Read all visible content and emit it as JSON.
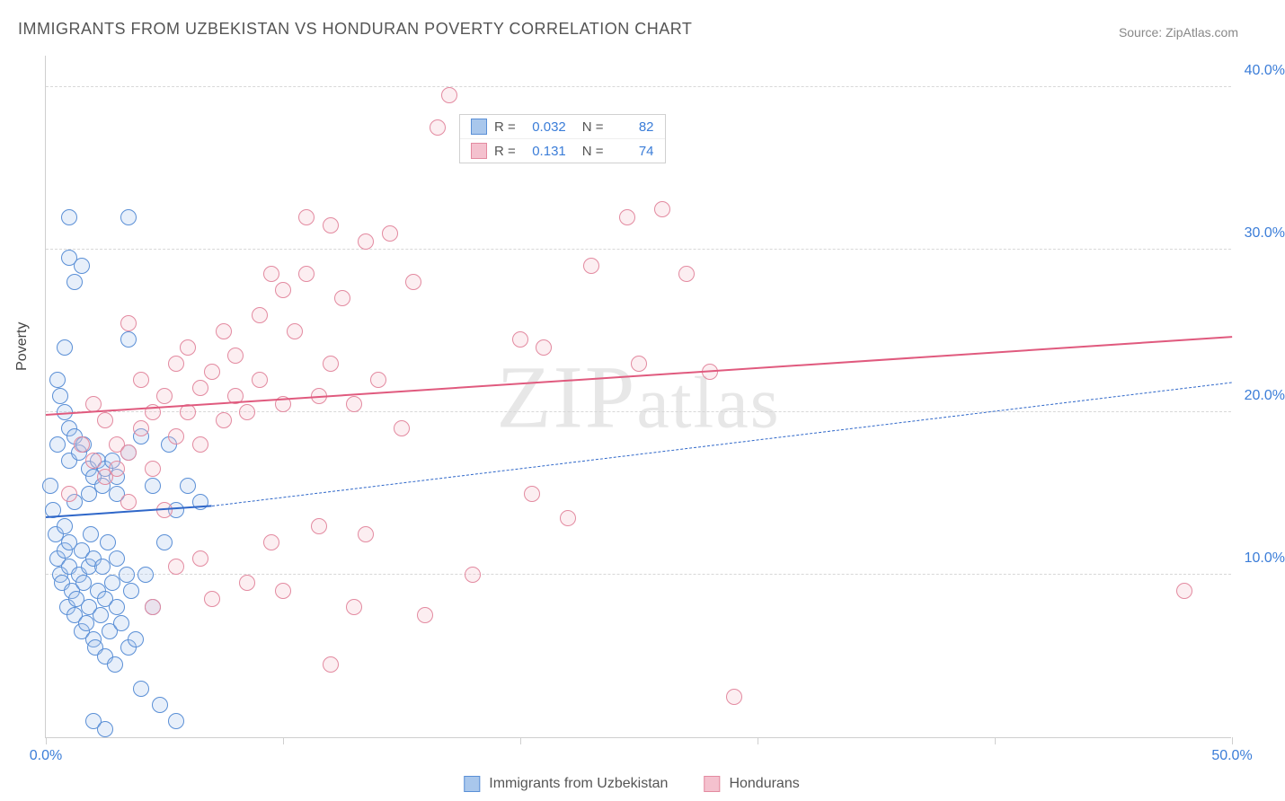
{
  "title": "IMMIGRANTS FROM UZBEKISTAN VS HONDURAN POVERTY CORRELATION CHART",
  "source": "Source: ZipAtlas.com",
  "watermark": "ZIPatlas",
  "y_axis_label": "Poverty",
  "chart": {
    "type": "scatter",
    "background_color": "#ffffff",
    "grid_color": "#d8d8d8",
    "axis_color": "#cfcfcf",
    "xlim": [
      0,
      50
    ],
    "ylim": [
      0,
      42
    ],
    "x_tick_major": [
      0,
      10,
      20,
      30,
      40,
      50
    ],
    "x_tick_labels": [
      {
        "pos": 0,
        "text": "0.0%",
        "color": "#3b7dd8"
      },
      {
        "pos": 50,
        "text": "50.0%",
        "color": "#3b7dd8"
      }
    ],
    "y_grid": [
      10,
      20,
      30,
      40
    ],
    "y_tick_labels": [
      {
        "pos": 10,
        "text": "10.0%",
        "color": "#3b7dd8"
      },
      {
        "pos": 20,
        "text": "20.0%",
        "color": "#3b7dd8"
      },
      {
        "pos": 30,
        "text": "30.0%",
        "color": "#3b7dd8"
      },
      {
        "pos": 40,
        "text": "40.0%",
        "color": "#3b7dd8"
      }
    ],
    "point_radius": 9,
    "point_border_width": 1.2,
    "point_fill_opacity": 0.28,
    "series": [
      {
        "name": "Immigrants from Uzbekistan",
        "color_border": "#5a8fd6",
        "color_fill": "#a9c7ec",
        "R": "0.032",
        "N": "82",
        "trend": {
          "x1": 0,
          "y1": 13.5,
          "x2_solid": 7,
          "y2_solid": 14.2,
          "x2": 50,
          "y2": 21.8,
          "color": "#2f67c9"
        },
        "points": [
          [
            0.2,
            15.5
          ],
          [
            0.3,
            14.0
          ],
          [
            0.4,
            12.5
          ],
          [
            0.5,
            11.0
          ],
          [
            0.5,
            18.0
          ],
          [
            0.6,
            10.0
          ],
          [
            0.7,
            9.5
          ],
          [
            0.8,
            11.5
          ],
          [
            0.8,
            13.0
          ],
          [
            0.9,
            8.0
          ],
          [
            1.0,
            10.5
          ],
          [
            1.0,
            12.0
          ],
          [
            1.1,
            9.0
          ],
          [
            1.2,
            7.5
          ],
          [
            1.2,
            14.5
          ],
          [
            1.3,
            8.5
          ],
          [
            1.4,
            10.0
          ],
          [
            1.5,
            6.5
          ],
          [
            1.5,
            11.5
          ],
          [
            1.6,
            9.5
          ],
          [
            1.7,
            7.0
          ],
          [
            1.8,
            8.0
          ],
          [
            1.8,
            10.5
          ],
          [
            1.9,
            12.5
          ],
          [
            2.0,
            6.0
          ],
          [
            2.0,
            11.0
          ],
          [
            2.1,
            5.5
          ],
          [
            2.2,
            9.0
          ],
          [
            2.3,
            7.5
          ],
          [
            2.4,
            10.5
          ],
          [
            2.5,
            5.0
          ],
          [
            2.5,
            8.5
          ],
          [
            2.6,
            12.0
          ],
          [
            2.7,
            6.5
          ],
          [
            2.8,
            9.5
          ],
          [
            2.9,
            4.5
          ],
          [
            3.0,
            8.0
          ],
          [
            3.0,
            11.0
          ],
          [
            3.2,
            7.0
          ],
          [
            3.4,
            10.0
          ],
          [
            3.5,
            5.5
          ],
          [
            3.6,
            9.0
          ],
          [
            3.8,
            6.0
          ],
          [
            4.0,
            3.0
          ],
          [
            4.2,
            10.0
          ],
          [
            4.5,
            8.0
          ],
          [
            4.8,
            2.0
          ],
          [
            5.0,
            12.0
          ],
          [
            5.2,
            18.0
          ],
          [
            5.5,
            14.0
          ],
          [
            6.0,
            15.5
          ],
          [
            6.5,
            14.5
          ],
          [
            0.5,
            22.0
          ],
          [
            0.6,
            21.0
          ],
          [
            0.8,
            20.0
          ],
          [
            1.0,
            19.0
          ],
          [
            1.0,
            17.0
          ],
          [
            1.2,
            18.5
          ],
          [
            1.4,
            17.5
          ],
          [
            1.6,
            18.0
          ],
          [
            1.8,
            16.5
          ],
          [
            2.0,
            16.0
          ],
          [
            2.2,
            17.0
          ],
          [
            2.5,
            16.5
          ],
          [
            2.8,
            17.0
          ],
          [
            3.0,
            16.0
          ],
          [
            3.5,
            17.5
          ],
          [
            4.0,
            18.5
          ],
          [
            0.8,
            24.0
          ],
          [
            1.0,
            29.5
          ],
          [
            1.2,
            28.0
          ],
          [
            1.5,
            29.0
          ],
          [
            1.0,
            32.0
          ],
          [
            3.5,
            32.0
          ],
          [
            3.5,
            24.5
          ],
          [
            2.0,
            1.0
          ],
          [
            2.5,
            0.5
          ],
          [
            5.5,
            1.0
          ],
          [
            1.8,
            15.0
          ],
          [
            2.4,
            15.5
          ],
          [
            3.0,
            15.0
          ],
          [
            4.5,
            15.5
          ]
        ]
      },
      {
        "name": "Hondurans",
        "color_border": "#e38aa0",
        "color_fill": "#f4c1ce",
        "R": "0.131",
        "N": "74",
        "trend": {
          "x1": 0,
          "y1": 19.8,
          "x2_solid": 50,
          "y2_solid": 24.6,
          "x2": 50,
          "y2": 24.6,
          "color": "#e05a7e"
        },
        "points": [
          [
            1.0,
            15.0
          ],
          [
            1.5,
            18.0
          ],
          [
            2.0,
            17.0
          ],
          [
            2.0,
            20.5
          ],
          [
            2.5,
            16.0
          ],
          [
            2.5,
            19.5
          ],
          [
            3.0,
            16.5
          ],
          [
            3.0,
            18.0
          ],
          [
            3.5,
            14.5
          ],
          [
            3.5,
            17.5
          ],
          [
            3.5,
            25.5
          ],
          [
            4.0,
            19.0
          ],
          [
            4.0,
            22.0
          ],
          [
            4.5,
            16.5
          ],
          [
            4.5,
            20.0
          ],
          [
            5.0,
            14.0
          ],
          [
            5.0,
            21.0
          ],
          [
            5.5,
            18.5
          ],
          [
            5.5,
            23.0
          ],
          [
            6.0,
            20.0
          ],
          [
            6.0,
            24.0
          ],
          [
            6.5,
            18.0
          ],
          [
            6.5,
            21.5
          ],
          [
            7.0,
            22.5
          ],
          [
            7.5,
            19.5
          ],
          [
            7.5,
            25.0
          ],
          [
            8.0,
            21.0
          ],
          [
            8.0,
            23.5
          ],
          [
            8.5,
            20.0
          ],
          [
            9.0,
            22.0
          ],
          [
            9.0,
            26.0
          ],
          [
            9.5,
            28.5
          ],
          [
            10.0,
            20.5
          ],
          [
            10.0,
            27.5
          ],
          [
            10.5,
            25.0
          ],
          [
            11.0,
            28.5
          ],
          [
            11.0,
            32.0
          ],
          [
            11.5,
            21.0
          ],
          [
            12.0,
            23.0
          ],
          [
            12.0,
            31.5
          ],
          [
            12.5,
            27.0
          ],
          [
            13.0,
            20.5
          ],
          [
            13.5,
            30.5
          ],
          [
            14.0,
            22.0
          ],
          [
            14.5,
            31.0
          ],
          [
            15.0,
            19.0
          ],
          [
            15.5,
            28.0
          ],
          [
            16.0,
            7.5
          ],
          [
            16.5,
            37.5
          ],
          [
            17.0,
            39.5
          ],
          [
            7.0,
            8.5
          ],
          [
            8.5,
            9.5
          ],
          [
            10.0,
            9.0
          ],
          [
            12.0,
            4.5
          ],
          [
            13.0,
            8.0
          ],
          [
            18.0,
            10.0
          ],
          [
            20.0,
            24.5
          ],
          [
            20.5,
            15.0
          ],
          [
            21.0,
            24.0
          ],
          [
            22.0,
            13.5
          ],
          [
            23.0,
            29.0
          ],
          [
            24.5,
            32.0
          ],
          [
            25.0,
            23.0
          ],
          [
            26.0,
            32.5
          ],
          [
            27.0,
            28.5
          ],
          [
            28.0,
            22.5
          ],
          [
            29.0,
            2.5
          ],
          [
            48.0,
            9.0
          ],
          [
            4.5,
            8.0
          ],
          [
            5.5,
            10.5
          ],
          [
            6.5,
            11.0
          ],
          [
            9.5,
            12.0
          ],
          [
            11.5,
            13.0
          ],
          [
            13.5,
            12.5
          ]
        ]
      }
    ],
    "legend_bottom": [
      {
        "label": "Immigrants from Uzbekistan",
        "border": "#5a8fd6",
        "fill": "#a9c7ec"
      },
      {
        "label": "Hondurans",
        "border": "#e38aa0",
        "fill": "#f4c1ce"
      }
    ]
  }
}
